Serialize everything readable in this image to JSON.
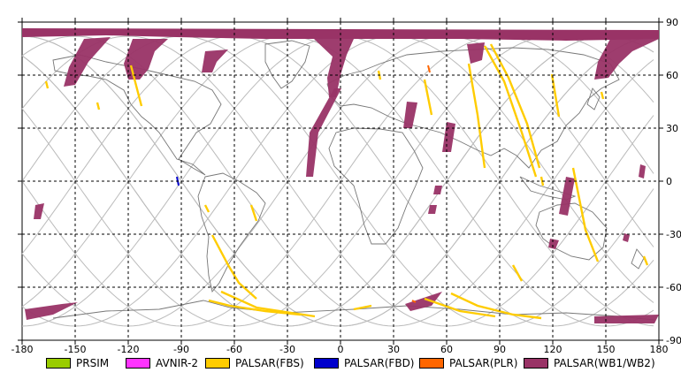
{
  "axes": {
    "lon_ticks": [
      "-180",
      "-150",
      "-120",
      "-90",
      "-60",
      "-30",
      "0",
      "30",
      "60",
      "90",
      "120",
      "150",
      "180"
    ],
    "lat_ticks": [
      "90",
      "60",
      "30",
      "0",
      "-30",
      "-60",
      "-90"
    ],
    "lon_range": [
      -180,
      180
    ],
    "lat_range": [
      -90,
      90
    ],
    "grid": "dashed"
  },
  "legend": [
    {
      "label": "PRSIM",
      "color": "#99cc00"
    },
    {
      "label": "AVNIR-2",
      "color": "#ff33ff"
    },
    {
      "label": "PALSAR(FBS)",
      "color": "#ffcc00"
    },
    {
      "label": "PALSAR(FBD)",
      "color": "#0000cc"
    },
    {
      "label": "PALSAR(PLR)",
      "color": "#ff6600"
    },
    {
      "label": "PALSAR(WB1/WB2)",
      "color": "#993366"
    }
  ],
  "colors": {
    "wb": "#993366",
    "fbs": "#ffcc00",
    "fbd": "#0000cc",
    "plr": "#ff6600",
    "orbit": "#bbbbbb",
    "coast": "#777777"
  }
}
